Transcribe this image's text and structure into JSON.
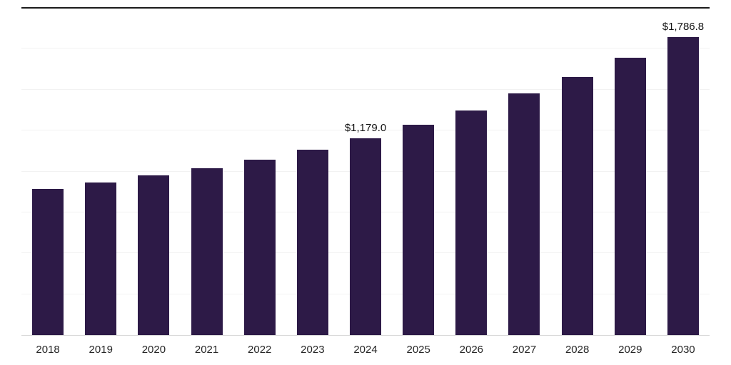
{
  "chart_data": {
    "type": "bar",
    "categories": [
      "2018",
      "2019",
      "2020",
      "2021",
      "2022",
      "2023",
      "2024",
      "2025",
      "2026",
      "2027",
      "2028",
      "2029",
      "2030"
    ],
    "values": [
      877,
      915,
      958,
      1000,
      1051,
      1111,
      1179.0,
      1260,
      1345,
      1447,
      1545,
      1660,
      1786.8
    ],
    "point_labels": [
      "",
      "",
      "",
      "",
      "",
      "",
      "$1,179.0",
      "",
      "",
      "",
      "",
      "",
      "$1,786.8"
    ],
    "title": "",
    "xlabel": "",
    "ylabel": "",
    "ylim": [
      0,
      1960
    ],
    "grid": "faint horizontal gridlines",
    "legend": "none",
    "bar_color": "#2d1a47",
    "value_label_color": "#111111",
    "tick_label_color": "#262626",
    "top_border_color": "#1b1b1b",
    "baseline_color": "#d9d9d9"
  }
}
